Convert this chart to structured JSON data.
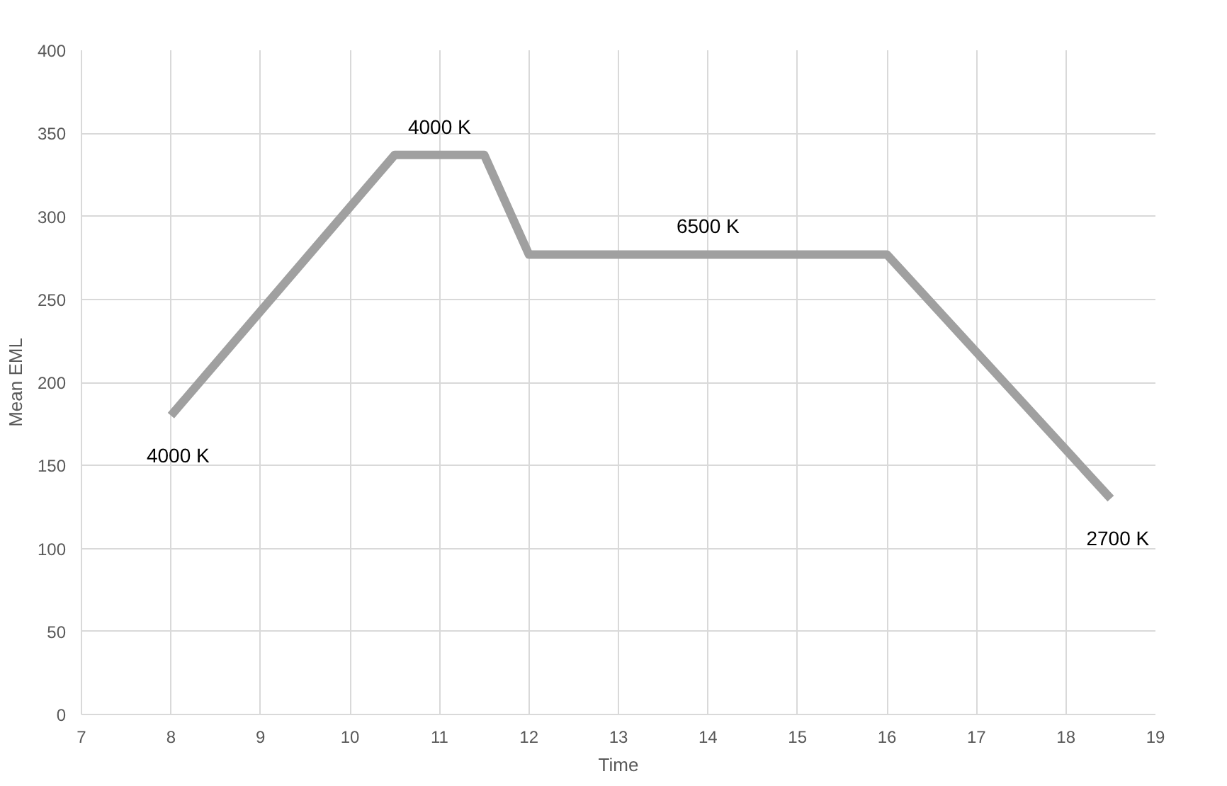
{
  "chart_data": {
    "type": "line",
    "xlabel": "Time",
    "ylabel": "Mean EML",
    "x": [
      8,
      10.5,
      11.5,
      12,
      16,
      18.5
    ],
    "series": [
      {
        "color": "#a0a0a0",
        "values": [
          180,
          337,
          337,
          277,
          277,
          130
        ]
      }
    ],
    "xlim": [
      7,
      19
    ],
    "xticks": [
      7,
      8,
      9,
      10,
      11,
      12,
      13,
      14,
      15,
      16,
      17,
      18,
      19
    ],
    "ylim": [
      0,
      400
    ],
    "yticks": [
      0,
      50,
      100,
      150,
      200,
      250,
      300,
      350,
      400
    ],
    "grid": true,
    "marker": "none",
    "line_style": "solid",
    "annotations": [
      {
        "text": "4000 K",
        "x": 8,
        "y": 180
      },
      {
        "text": "4000 K",
        "x": 11,
        "y": 337
      },
      {
        "text": "6500 K",
        "x": 14,
        "y": 277
      },
      {
        "text": "2700 K",
        "x": 18.5,
        "y": 130
      }
    ]
  }
}
